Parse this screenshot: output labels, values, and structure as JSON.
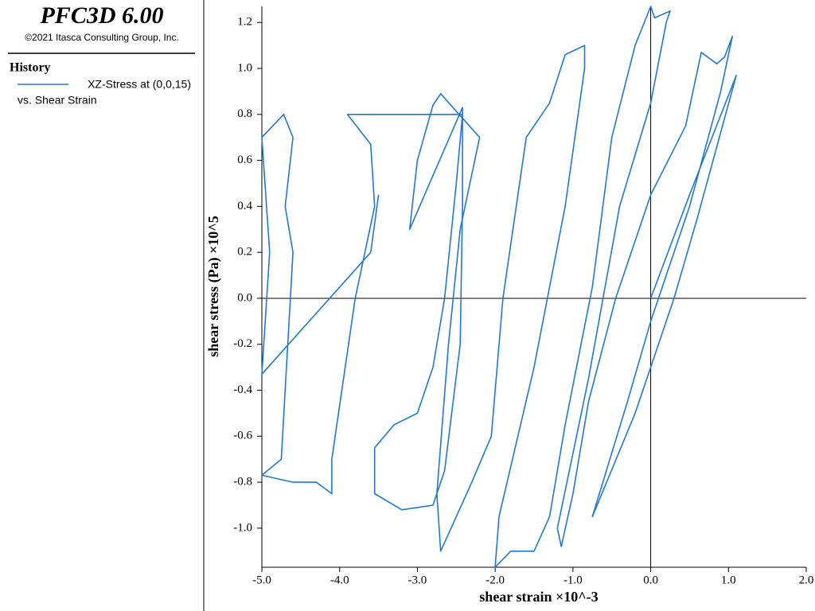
{
  "chart_data": {
    "type": "line",
    "title": "PFC3D 6.00",
    "subtitle": "©2021 Itasca Consulting Group, Inc.",
    "legend_title": "History",
    "legend_note": "vs. Shear Strain",
    "x_label": "shear strain ×10^-3",
    "y_label": "shear stress (Pa) ×10^5",
    "xlim": [
      -5.0,
      2.0
    ],
    "ylim": [
      -1.17,
      1.27
    ],
    "xticks": [
      {
        "value": -5,
        "label": "-5.0"
      },
      {
        "value": -4,
        "label": "-4.0"
      },
      {
        "value": -3,
        "label": "-3.0"
      },
      {
        "value": -2,
        "label": "-2.0"
      },
      {
        "value": -1,
        "label": "-1.0"
      },
      {
        "value": 0,
        "label": "0.0"
      },
      {
        "value": 1,
        "label": "1.0"
      },
      {
        "value": 2,
        "label": "2.0"
      }
    ],
    "yticks": [
      {
        "value": -1,
        "label": "-1.0"
      },
      -0.8,
      -0.6,
      -0.4,
      -0.2,
      {
        "value": 0,
        "label": "0.0"
      },
      0.2,
      0.4,
      0.6,
      0.8,
      {
        "value": 1,
        "label": "1.0"
      },
      1.2
    ],
    "series": [
      {
        "name": "XZ-Stress at (0,0,15)",
        "color": "#1c7ad6",
        "x": [
          0,
          0.5,
          1.1,
          0.6,
          0.3,
          -0.2,
          -0.75,
          -0.3,
          0,
          0.5,
          0.9,
          1.05,
          0.95,
          0.85,
          0.65,
          0.45,
          0,
          -0.45,
          -0.8,
          -1.0,
          -1.15,
          -1.2,
          -0.8,
          -0.4,
          0,
          0.2,
          0.25,
          0.05,
          0,
          -0.2,
          -0.5,
          -0.75,
          -1.1,
          -1.3,
          -1.5,
          -1.8,
          -2.0,
          -1.95,
          -1.5,
          -1.1,
          -0.85,
          -0.85,
          -1.1,
          -1.3,
          -1.6,
          -1.9,
          -2.05,
          -2.3,
          -2.5,
          -2.7,
          -2.75,
          -2.6,
          -2.45,
          -2.2,
          -2.7,
          -2.8,
          -3.0,
          -3.1,
          -2.42,
          -2.42,
          -2.45,
          -2.65,
          -2.8,
          -3.2,
          -3.55,
          -3.55,
          -3.3,
          -3.0,
          -2.8,
          -2.65,
          -2.5,
          -2.42,
          -3.9,
          -3.6,
          -3.55,
          -3.8,
          -4.1,
          -4.1,
          -4.3,
          -4.6,
          -5.0,
          -4.75,
          -4.6,
          -4.7,
          -4.6,
          -4.72,
          -5.0,
          -4.9,
          -5.0,
          -3.6,
          -3.5
        ],
        "values": [
          0,
          0.45,
          0.97,
          0.35,
          0,
          -0.5,
          -0.95,
          -0.45,
          -0.1,
          0.4,
          0.9,
          1.14,
          1.05,
          1.02,
          1.07,
          0.75,
          0.45,
          0,
          -0.45,
          -0.85,
          -1.08,
          -1.0,
          -0.35,
          0.4,
          0.85,
          1.2,
          1.25,
          1.22,
          1.27,
          1.1,
          0.7,
          0.05,
          -0.55,
          -0.95,
          -1.1,
          -1.1,
          -1.17,
          -0.95,
          -0.3,
          0.4,
          1.0,
          1.1,
          1.06,
          0.85,
          0.7,
          0.0,
          -0.6,
          -0.8,
          -0.95,
          -1.1,
          -0.85,
          -0.2,
          0.3,
          0.7,
          0.89,
          0.84,
          0.6,
          0.3,
          0.83,
          0.4,
          -0.2,
          -0.75,
          -0.9,
          -0.92,
          -0.85,
          -0.65,
          -0.55,
          -0.5,
          -0.3,
          0.0,
          0.5,
          0.8,
          0.8,
          0.67,
          0.4,
          0.0,
          -0.7,
          -0.85,
          -0.8,
          -0.8,
          -0.77,
          -0.7,
          0.2,
          0.4,
          0.7,
          0.8,
          0.7,
          0.2,
          -0.33,
          0.2,
          0.45
        ]
      }
    ]
  }
}
